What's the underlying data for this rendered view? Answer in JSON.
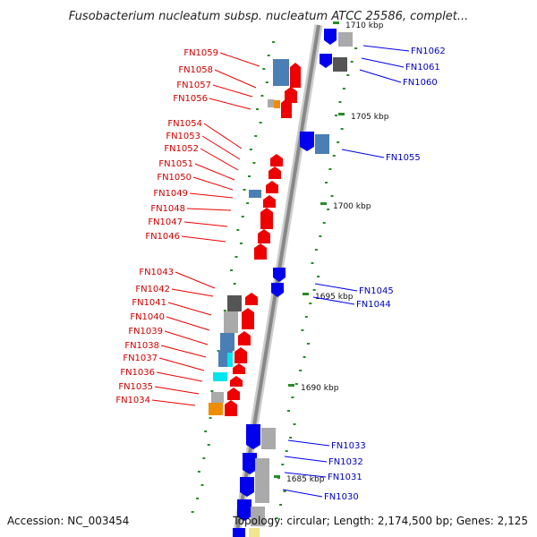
{
  "title": "Fusobacterium nucleatum subsp. nucleatum ATCC 25586, complet...",
  "footer": {
    "accession": "Accession: NC_003454",
    "topology": "Topology: circular; Length: 2,174,500 bp; Genes: 2,125"
  },
  "colors": {
    "backbone": "#888888",
    "red": "#ee0000",
    "blue": "#0000ee",
    "steelblue": "#4a7fb5",
    "grey": "#aaaaaa",
    "darkgrey": "#555555",
    "cyan": "#00e5ee",
    "orange": "#f08c00",
    "yellow": "#f0e68c",
    "green": "#2a8a2a",
    "label_red": "#cc0000",
    "label_blue": "#0000bb"
  },
  "ticks": [
    "1710 kbp",
    "1705 kbp",
    "1700 kbp",
    "1695 kbp",
    "1690 kbp",
    "1685 kbp"
  ],
  "genes_left": [
    "FN1059",
    "FN1058",
    "FN1057",
    "FN1056",
    "FN1054",
    "FN1053",
    "FN1052",
    "FN1051",
    "FN1050",
    "FN1049",
    "FN1048",
    "FN1047",
    "FN1046",
    "FN1043",
    "FN1042",
    "FN1041",
    "FN1040",
    "FN1039",
    "FN1038",
    "FN1037",
    "FN1036",
    "FN1035",
    "FN1034"
  ],
  "genes_right": [
    "FN1062",
    "FN1061",
    "FN1060",
    "FN1055",
    "FN1045",
    "FN1044",
    "FN1033",
    "FN1032",
    "FN1031",
    "FN1030"
  ]
}
